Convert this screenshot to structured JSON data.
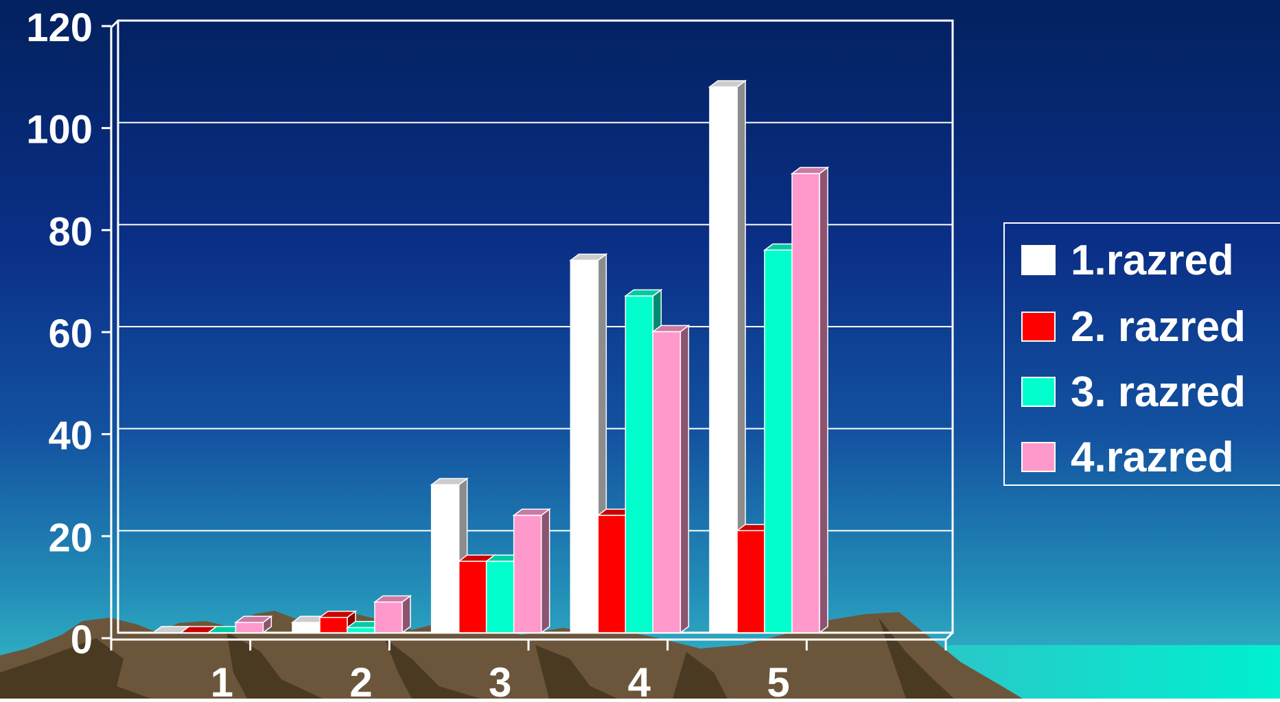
{
  "chart_data": {
    "type": "bar",
    "title": "",
    "xlabel": "",
    "ylabel": "",
    "categories": [
      "1",
      "2",
      "3",
      "4",
      "5"
    ],
    "ylim": [
      0,
      120
    ],
    "yticks": [
      "0",
      "20",
      "40",
      "60",
      "80",
      "100",
      "120"
    ],
    "grid": true,
    "legend_position": "right",
    "series": [
      {
        "name": "1.razred",
        "values": [
          0,
          2,
          29,
          73,
          107
        ],
        "color": "#ffffff"
      },
      {
        "name": "2. razred",
        "values": [
          0,
          3,
          14,
          23,
          20
        ],
        "color": "#ff0000"
      },
      {
        "name": "3. razred",
        "values": [
          0,
          1,
          14,
          66,
          75
        ],
        "color": "#00ffcc"
      },
      {
        "name": "4.razred",
        "values": [
          2,
          6,
          23,
          59,
          90
        ],
        "color": "#ff99cc"
      }
    ]
  },
  "colors": {
    "background_top": "#03215f",
    "background_bottom": "#2fb6c4",
    "grid": "#ffffff",
    "text": "#ffffff",
    "sea": "#00e8c8",
    "rock": "#6e5a3f"
  }
}
